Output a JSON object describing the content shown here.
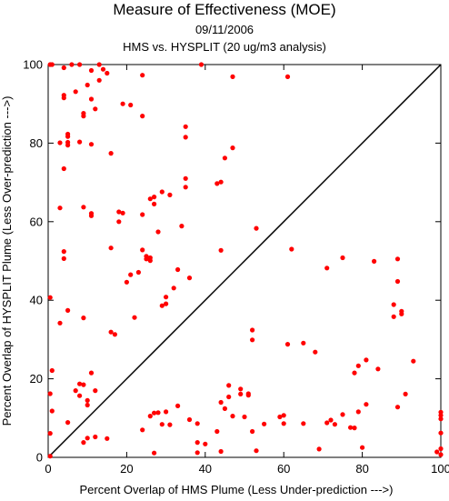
{
  "chart_data": {
    "type": "scatter",
    "title": "Measure of Effectiveness (MOE)",
    "subtitle_1": "09/11/2006",
    "subtitle_2": "HMS vs. HYSPLIT  (20 ug/m3 analysis)",
    "xlabel": "Percent Overlap of HMS Plume (Less Under-prediction --->)",
    "ylabel": "Percent Overlap of HYSPLIT Plume (Less Over-prediction --->)",
    "xlim": [
      0,
      100
    ],
    "ylim": [
      0,
      100
    ],
    "xticks": [
      "0",
      "20",
      "40",
      "60",
      "80",
      "100"
    ],
    "yticks": [
      "0",
      "20",
      "40",
      "60",
      "80",
      "100"
    ],
    "grid": false,
    "reference_line": "diagonal y = x",
    "point_color": "#ff0000",
    "points": [
      [
        0.5,
        100
      ],
      [
        1,
        100
      ],
      [
        4,
        99.2
      ],
      [
        6,
        100
      ],
      [
        8,
        100
      ],
      [
        11,
        98.5
      ],
      [
        13,
        100
      ],
      [
        15,
        97.8
      ],
      [
        24,
        97.3
      ],
      [
        39,
        100
      ],
      [
        47,
        96.9
      ],
      [
        61,
        96.9
      ],
      [
        4,
        92.2
      ],
      [
        4,
        91.5
      ],
      [
        7,
        93.1
      ],
      [
        10,
        94.8
      ],
      [
        11,
        91.2
      ],
      [
        12,
        88.7
      ],
      [
        13,
        96
      ],
      [
        14,
        98.8
      ],
      [
        19,
        90
      ],
      [
        21,
        89.7
      ],
      [
        24,
        86.9
      ],
      [
        9,
        87.6
      ],
      [
        9,
        86.9
      ],
      [
        3,
        80.1
      ],
      [
        5,
        82.3
      ],
      [
        5,
        81.7
      ],
      [
        5,
        80.2
      ],
      [
        5,
        79.5
      ],
      [
        8,
        80.3
      ],
      [
        11,
        79.7
      ],
      [
        16,
        77.4
      ],
      [
        35,
        84.2
      ],
      [
        35,
        81.5
      ],
      [
        47,
        78.8
      ],
      [
        45,
        76.2
      ],
      [
        4,
        73.5
      ],
      [
        35,
        71
      ],
      [
        35,
        68.8
      ],
      [
        29,
        67.6
      ],
      [
        27,
        66.3
      ],
      [
        31,
        66.8
      ],
      [
        43,
        69.7
      ],
      [
        44,
        70.1
      ],
      [
        3,
        63.5
      ],
      [
        9,
        63.7
      ],
      [
        11,
        62.1
      ],
      [
        11,
        61.5
      ],
      [
        18,
        62.5
      ],
      [
        19,
        62.2
      ],
      [
        18,
        60
      ],
      [
        24,
        61.8
      ],
      [
        26,
        65.8
      ],
      [
        27,
        64.5
      ],
      [
        28,
        57.4
      ],
      [
        34,
        58.9
      ],
      [
        53,
        58.3
      ],
      [
        4,
        52.4
      ],
      [
        4,
        50.6
      ],
      [
        16,
        53.3
      ],
      [
        24,
        52.8
      ],
      [
        25,
        51.2
      ],
      [
        25,
        50.5
      ],
      [
        26,
        50.8
      ],
      [
        26,
        50.1
      ],
      [
        21,
        46.5
      ],
      [
        23,
        47.1
      ],
      [
        20,
        44.6
      ],
      [
        36,
        45.7
      ],
      [
        30,
        40.8
      ],
      [
        30,
        39.1
      ],
      [
        32,
        43.1
      ],
      [
        33,
        47.8
      ],
      [
        44,
        52.7
      ],
      [
        62,
        53
      ],
      [
        0.5,
        40.7
      ],
      [
        5,
        37.4
      ],
      [
        3,
        34.2
      ],
      [
        9,
        35.5
      ],
      [
        17,
        31.3
      ],
      [
        16,
        31.9
      ],
      [
        22,
        35.6
      ],
      [
        29,
        38.6
      ],
      [
        71,
        48.2
      ],
      [
        75,
        50.8
      ],
      [
        83,
        49.9
      ],
      [
        89,
        50.5
      ],
      [
        89,
        44.8
      ],
      [
        88,
        38.9
      ],
      [
        88,
        35.8
      ],
      [
        90,
        37.2
      ],
      [
        90,
        36.5
      ],
      [
        52,
        32.4
      ],
      [
        52,
        29.9
      ],
      [
        61,
        28.8
      ],
      [
        65,
        29.1
      ],
      [
        68,
        26.8
      ],
      [
        79,
        23.3
      ],
      [
        81,
        24.8
      ],
      [
        84,
        22.5
      ],
      [
        93,
        24.5
      ],
      [
        1,
        22.1
      ],
      [
        8,
        18.7
      ],
      [
        9,
        18.5
      ],
      [
        11,
        21.5
      ],
      [
        12,
        17
      ],
      [
        7,
        17
      ],
      [
        8,
        15.7
      ],
      [
        10,
        13.3
      ],
      [
        10,
        14.5
      ],
      [
        1,
        11.8
      ],
      [
        5,
        8.9
      ],
      [
        0.5,
        16.2
      ],
      [
        0.5,
        6.1
      ],
      [
        0.5,
        0.3
      ],
      [
        10,
        4.9
      ],
      [
        9,
        3.8
      ],
      [
        12,
        5.2
      ],
      [
        15,
        4.8
      ],
      [
        24,
        7
      ],
      [
        26,
        10.5
      ],
      [
        27,
        11.3
      ],
      [
        28,
        11.4
      ],
      [
        30,
        11.6
      ],
      [
        29,
        8.4
      ],
      [
        31,
        8.3
      ],
      [
        33,
        13.1
      ],
      [
        36,
        9.6
      ],
      [
        38,
        8.6
      ],
      [
        38,
        3.8
      ],
      [
        40,
        3.4
      ],
      [
        43,
        6.6
      ],
      [
        44,
        14
      ],
      [
        45,
        12.4
      ],
      [
        46,
        15.4
      ],
      [
        46,
        18.3
      ],
      [
        47,
        10.5
      ],
      [
        49,
        17.4
      ],
      [
        49,
        16.1
      ],
      [
        51,
        16.2
      ],
      [
        51,
        15.8
      ],
      [
        50,
        10.3
      ],
      [
        52,
        6.6
      ],
      [
        53,
        1.7
      ],
      [
        55,
        8.5
      ],
      [
        59,
        10.3
      ],
      [
        60,
        8.6
      ],
      [
        60,
        10.7
      ],
      [
        65,
        8.6
      ],
      [
        71,
        8.8
      ],
      [
        72,
        9.5
      ],
      [
        73,
        8.4
      ],
      [
        75,
        10.9
      ],
      [
        77,
        7.6
      ],
      [
        78,
        7.5
      ],
      [
        79,
        11.6
      ],
      [
        80,
        2.5
      ],
      [
        81,
        13.5
      ],
      [
        78,
        21.5
      ],
      [
        89,
        12.8
      ],
      [
        91,
        16.1
      ],
      [
        69,
        2.1
      ],
      [
        27,
        1.1
      ],
      [
        44,
        1.5
      ],
      [
        38,
        1.2
      ],
      [
        99,
        1.4
      ],
      [
        100,
        2.2
      ],
      [
        100,
        0.7
      ],
      [
        100,
        6.2
      ],
      [
        100,
        9.8
      ],
      [
        100,
        10.7
      ],
      [
        100,
        11.5
      ]
    ]
  }
}
